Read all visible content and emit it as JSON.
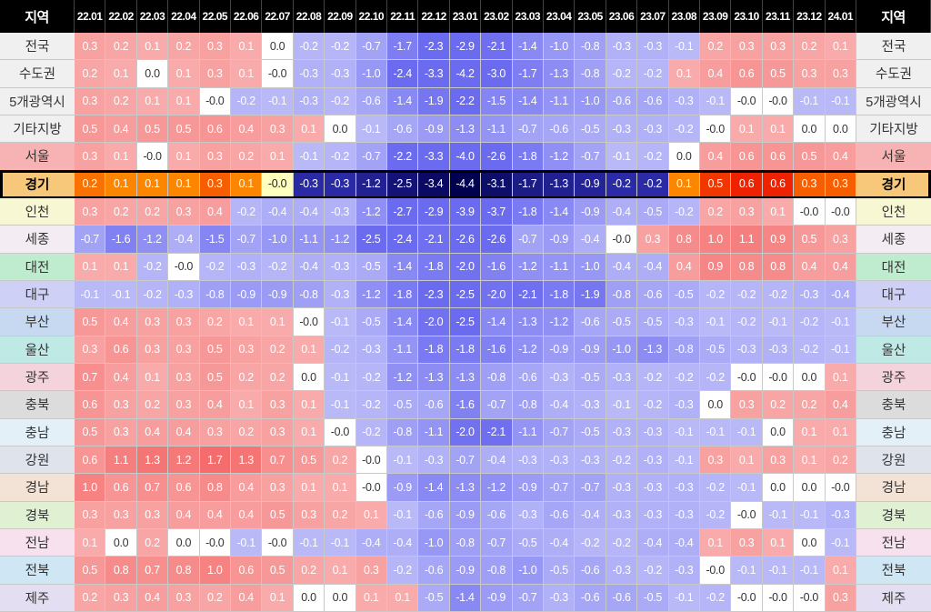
{
  "chart_data": {
    "type": "heatmap",
    "corner_label_left": "지역",
    "corner_label_right": "지역",
    "columns": [
      "22.01",
      "22.02",
      "22.03",
      "22.04",
      "22.05",
      "22.06",
      "22.07",
      "22.08",
      "22.09",
      "22.10",
      "22.11",
      "22.12",
      "23.01",
      "23.02",
      "23.03",
      "23.04",
      "23.05",
      "23.06",
      "23.07",
      "23.08",
      "23.09",
      "23.10",
      "23.11",
      "23.12",
      "24.01"
    ],
    "highlighted_row": "경기",
    "rows": [
      {
        "name": "전국",
        "label_color": "#f0f0f0",
        "values": [
          "0.3",
          "0.2",
          "0.1",
          "0.2",
          "0.3",
          "0.1",
          "0.0",
          "-0.2",
          "-0.2",
          "-0.7",
          "-1.7",
          "-2.3",
          "-2.9",
          "-2.1",
          "-1.4",
          "-1.0",
          "-0.8",
          "-0.3",
          "-0.3",
          "-0.1",
          "0.2",
          "0.3",
          "0.3",
          "0.2",
          "0.1"
        ]
      },
      {
        "name": "수도권",
        "label_color": "#f0f0f0",
        "values": [
          "0.2",
          "0.1",
          "0.0",
          "0.1",
          "0.3",
          "0.1",
          "-0.0",
          "-0.3",
          "-0.3",
          "-1.0",
          "-2.4",
          "-3.3",
          "-4.2",
          "-3.0",
          "-1.7",
          "-1.3",
          "-0.8",
          "-0.2",
          "-0.2",
          "0.1",
          "0.4",
          "0.6",
          "0.5",
          "0.3",
          "0.3"
        ]
      },
      {
        "name": "5개광역시",
        "label_color": "#f0f0f0",
        "values": [
          "0.3",
          "0.2",
          "0.1",
          "0.1",
          "-0.0",
          "-0.2",
          "-0.1",
          "-0.3",
          "-0.2",
          "-0.6",
          "-1.4",
          "-1.9",
          "-2.2",
          "-1.5",
          "-1.4",
          "-1.1",
          "-1.0",
          "-0.6",
          "-0.6",
          "-0.3",
          "-0.1",
          "-0.0",
          "-0.0",
          "-0.1",
          "-0.1"
        ]
      },
      {
        "name": "기타지방",
        "label_color": "#f0f0f0",
        "values": [
          "0.5",
          "0.4",
          "0.5",
          "0.5",
          "0.6",
          "0.4",
          "0.3",
          "0.1",
          "0.0",
          "-0.1",
          "-0.6",
          "-0.9",
          "-1.3",
          "-1.1",
          "-0.7",
          "-0.6",
          "-0.5",
          "-0.3",
          "-0.3",
          "-0.2",
          "-0.0",
          "0.1",
          "0.1",
          "0.0",
          "0.0"
        ]
      },
      {
        "name": "서울",
        "label_color": "#f7b3b3",
        "values": [
          "0.3",
          "0.1",
          "-0.0",
          "0.1",
          "0.3",
          "0.2",
          "0.1",
          "-0.1",
          "-0.2",
          "-0.7",
          "-2.2",
          "-3.3",
          "-4.0",
          "-2.6",
          "-1.8",
          "-1.2",
          "-0.7",
          "-0.1",
          "-0.2",
          "0.0",
          "0.4",
          "0.6",
          "0.6",
          "0.5",
          "0.4"
        ]
      },
      {
        "name": "경기",
        "label_color": "#f7c87a",
        "values": [
          "0.2",
          "0.1",
          "0.1",
          "0.1",
          "0.3",
          "0.1",
          "-0.0",
          "-0.3",
          "-0.3",
          "-1.2",
          "-2.5",
          "-3.4",
          "-4.4",
          "-3.1",
          "-1.7",
          "-1.3",
          "-0.9",
          "-0.2",
          "-0.2",
          "0.1",
          "0.5",
          "0.6",
          "0.6",
          "0.3",
          "0.3"
        ]
      },
      {
        "name": "인천",
        "label_color": "#f7f7d4",
        "values": [
          "0.3",
          "0.2",
          "0.2",
          "0.3",
          "0.4",
          "-0.2",
          "-0.4",
          "-0.4",
          "-0.3",
          "-1.2",
          "-2.7",
          "-2.9",
          "-3.9",
          "-3.7",
          "-1.8",
          "-1.4",
          "-0.9",
          "-0.4",
          "-0.5",
          "-0.2",
          "0.2",
          "0.3",
          "0.1",
          "-0.0",
          "-0.0"
        ]
      },
      {
        "name": "세종",
        "label_color": "#f3ecf3",
        "values": [
          "-0.7",
          "-1.6",
          "-1.2",
          "-0.4",
          "-1.5",
          "-0.7",
          "-1.0",
          "-1.1",
          "-1.2",
          "-2.5",
          "-2.4",
          "-2.1",
          "-2.6",
          "-2.6",
          "-0.7",
          "-0.9",
          "-0.4",
          "-0.0",
          "0.3",
          "0.8",
          "1.0",
          "1.1",
          "0.9",
          "0.5",
          "0.3"
        ]
      },
      {
        "name": "대전",
        "label_color": "#bfeccf",
        "values": [
          "0.1",
          "0.1",
          "-0.2",
          "-0.0",
          "-0.2",
          "-0.3",
          "-0.2",
          "-0.4",
          "-0.3",
          "-0.5",
          "-1.4",
          "-1.8",
          "-2.0",
          "-1.6",
          "-1.2",
          "-1.1",
          "-1.0",
          "-0.4",
          "-0.4",
          "0.4",
          "0.9",
          "0.8",
          "0.8",
          "0.4",
          "0.4"
        ]
      },
      {
        "name": "대구",
        "label_color": "#cfd0f5",
        "values": [
          "-0.1",
          "-0.1",
          "-0.2",
          "-0.3",
          "-0.8",
          "-0.9",
          "-0.9",
          "-0.8",
          "-0.3",
          "-1.2",
          "-1.8",
          "-2.3",
          "-2.5",
          "-2.0",
          "-2.1",
          "-1.8",
          "-1.9",
          "-0.8",
          "-0.6",
          "-0.5",
          "-0.2",
          "-0.2",
          "-0.2",
          "-0.3",
          "-0.4"
        ]
      },
      {
        "name": "부산",
        "label_color": "#c6d9f1",
        "values": [
          "0.5",
          "0.4",
          "0.3",
          "0.3",
          "0.2",
          "0.1",
          "0.1",
          "-0.0",
          "-0.1",
          "-0.5",
          "-1.4",
          "-2.0",
          "-2.5",
          "-1.4",
          "-1.3",
          "-1.2",
          "-0.6",
          "-0.5",
          "-0.5",
          "-0.3",
          "-0.1",
          "-0.2",
          "-0.1",
          "-0.2",
          "-0.1"
        ]
      },
      {
        "name": "울산",
        "label_color": "#bfe9e4",
        "values": [
          "0.3",
          "0.6",
          "0.3",
          "0.3",
          "0.5",
          "0.3",
          "0.2",
          "0.1",
          "-0.2",
          "-0.3",
          "-1.1",
          "-1.8",
          "-1.8",
          "-1.6",
          "-1.2",
          "-0.9",
          "-0.9",
          "-1.0",
          "-1.3",
          "-0.8",
          "-0.5",
          "-0.3",
          "-0.3",
          "-0.2",
          "-0.1"
        ]
      },
      {
        "name": "광주",
        "label_color": "#f5d3dd",
        "values": [
          "0.7",
          "0.4",
          "0.1",
          "0.3",
          "0.5",
          "0.2",
          "0.2",
          "0.0",
          "-0.1",
          "-0.2",
          "-1.2",
          "-1.3",
          "-1.3",
          "-0.8",
          "-0.6",
          "-0.3",
          "-0.5",
          "-0.3",
          "-0.2",
          "-0.2",
          "-0.2",
          "-0.0",
          "-0.0",
          "0.0",
          "0.1"
        ]
      },
      {
        "name": "충북",
        "label_color": "#dcdcdc",
        "values": [
          "0.6",
          "0.3",
          "0.2",
          "0.3",
          "0.4",
          "0.1",
          "0.3",
          "0.1",
          "-0.1",
          "-0.2",
          "-0.5",
          "-0.6",
          "-1.6",
          "-0.7",
          "-0.8",
          "-0.4",
          "-0.3",
          "-0.1",
          "-0.2",
          "-0.3",
          "0.0",
          "0.3",
          "0.2",
          "0.2",
          "0.4"
        ]
      },
      {
        "name": "충남",
        "label_color": "#e3f0f7",
        "values": [
          "0.5",
          "0.3",
          "0.4",
          "0.4",
          "0.3",
          "0.2",
          "0.3",
          "0.1",
          "-0.0",
          "-0.2",
          "-0.8",
          "-1.1",
          "-2.0",
          "-2.1",
          "-1.1",
          "-0.7",
          "-0.5",
          "-0.3",
          "-0.3",
          "-0.1",
          "-0.1",
          "-0.1",
          "0.0",
          "0.1",
          "0.1"
        ]
      },
      {
        "name": "강원",
        "label_color": "#dfe4ec",
        "values": [
          "0.6",
          "1.1",
          "1.3",
          "1.2",
          "1.7",
          "1.3",
          "0.7",
          "0.5",
          "0.2",
          "-0.0",
          "-0.1",
          "-0.3",
          "-0.7",
          "-0.4",
          "-0.3",
          "-0.3",
          "-0.3",
          "-0.2",
          "-0.3",
          "-0.1",
          "0.3",
          "0.1",
          "0.3",
          "0.1",
          "0.2"
        ]
      },
      {
        "name": "경남",
        "label_color": "#f3e2d6",
        "values": [
          "1.0",
          "0.6",
          "0.7",
          "0.6",
          "0.8",
          "0.4",
          "0.3",
          "0.1",
          "0.1",
          "-0.0",
          "-0.9",
          "-1.4",
          "-1.3",
          "-1.2",
          "-0.9",
          "-0.7",
          "-0.7",
          "-0.3",
          "-0.3",
          "-0.3",
          "-0.2",
          "-0.1",
          "0.0",
          "0.0",
          "-0.0"
        ]
      },
      {
        "name": "경북",
        "label_color": "#dff0d3",
        "values": [
          "0.3",
          "0.3",
          "0.3",
          "0.4",
          "0.4",
          "0.4",
          "0.5",
          "0.3",
          "0.2",
          "0.1",
          "-0.1",
          "-0.6",
          "-0.9",
          "-0.6",
          "-0.3",
          "-0.6",
          "-0.4",
          "-0.3",
          "-0.3",
          "-0.3",
          "-0.2",
          "-0.0",
          "-0.1",
          "-0.1",
          "-0.3"
        ]
      },
      {
        "name": "전남",
        "label_color": "#f8e1ef",
        "values": [
          "0.1",
          "0.0",
          "0.2",
          "0.0",
          "-0.0",
          "-0.1",
          "-0.0",
          "-0.1",
          "-0.1",
          "-0.4",
          "-0.4",
          "-1.0",
          "-0.8",
          "-0.7",
          "-0.5",
          "-0.4",
          "-0.2",
          "-0.2",
          "-0.4",
          "-0.4",
          "0.1",
          "0.3",
          "0.1",
          "0.0",
          "-0.1"
        ]
      },
      {
        "name": "전북",
        "label_color": "#cfe6f5",
        "values": [
          "0.5",
          "0.8",
          "0.7",
          "0.8",
          "1.0",
          "0.6",
          "0.5",
          "0.2",
          "0.1",
          "0.3",
          "-0.2",
          "-0.6",
          "-0.9",
          "-0.8",
          "-1.0",
          "-0.5",
          "-0.6",
          "-0.3",
          "-0.2",
          "-0.3",
          "-0.0",
          "-0.1",
          "-0.1",
          "-0.1",
          "0.1"
        ]
      },
      {
        "name": "제주",
        "label_color": "#e4def2",
        "values": [
          "0.2",
          "0.3",
          "0.4",
          "0.3",
          "0.2",
          "0.4",
          "0.1",
          "0.0",
          "0.0",
          "0.1",
          "0.1",
          "-0.5",
          "-1.4",
          "-0.9",
          "-0.7",
          "-0.3",
          "-0.6",
          "-0.6",
          "-0.5",
          "-0.1",
          "-0.2",
          "-0.0",
          "-0.0",
          "-0.0",
          "0.3"
        ]
      }
    ],
    "colors": {
      "positive": "#f46c6c",
      "negative": "#6b6bf0",
      "zero": "#ffffff",
      "highlight_positive_low": "#ff9a00",
      "highlight_positive_high": "#ee2200",
      "highlight_negative": "#000050",
      "highlight_zero": "#ffffbe",
      "header_bg": "#000000",
      "header_text": "#ffffff"
    }
  }
}
